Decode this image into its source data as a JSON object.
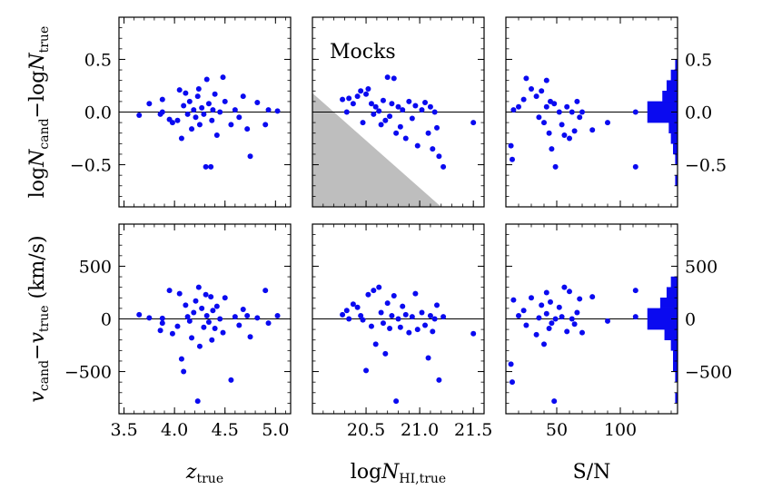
{
  "chart_data": {
    "type": "scatter",
    "title": "",
    "annotation": "Mocks",
    "point_color": "#0a0af0",
    "shade_color": "#bebebe",
    "rows": [
      {
        "key": "dlogN",
        "ylabel": "logN_cand − logN_true",
        "ylabel_parts": {
          "a": "log",
          "b": "N",
          "c": "cand",
          "d": "−log",
          "e": "N",
          "f": "true"
        },
        "ylim": [
          -0.9,
          0.9
        ],
        "ticks": [
          -0.5,
          0.0,
          0.5
        ],
        "tick_labels": [
          "−0.5",
          "0.0",
          "0.5"
        ],
        "zero_line": 0.0
      },
      {
        "key": "dv",
        "ylabel": "v_cand − v_true (km/s)",
        "ylabel_parts": {
          "a": "v",
          "b": "cand",
          "c": "−",
          "d": "v",
          "e": "true",
          "f": " (km/s)"
        },
        "ylim": [
          -900,
          900
        ],
        "ticks": [
          -500,
          0,
          500
        ],
        "tick_labels": [
          "−500",
          "0",
          "500"
        ],
        "zero_line": 0
      }
    ],
    "columns": [
      {
        "key": "z",
        "xlabel": "z_true",
        "xlabel_parts": {
          "main": "z",
          "sub": "true"
        },
        "xlim": [
          3.45,
          5.15
        ],
        "ticks": [
          3.5,
          4.0,
          4.5,
          5.0
        ],
        "tick_labels": [
          "3.5",
          "4.0",
          "4.5",
          "5.0"
        ],
        "points": [
          {
            "x": 3.65,
            "dlogN": -0.03,
            "dv": 40
          },
          {
            "x": 3.75,
            "dlogN": 0.08,
            "dv": 10
          },
          {
            "x": 3.86,
            "dlogN": -0.02,
            "dv": -110
          },
          {
            "x": 3.88,
            "dlogN": 0.12,
            "dv": -40
          },
          {
            "x": 3.88,
            "dlogN": 0.0,
            "dv": 5
          },
          {
            "x": 3.95,
            "dlogN": -0.07,
            "dv": 270
          },
          {
            "x": 3.98,
            "dlogN": -0.1,
            "dv": -140
          },
          {
            "x": 4.03,
            "dlogN": -0.08,
            "dv": -70
          },
          {
            "x": 4.05,
            "dlogN": 0.21,
            "dv": 240
          },
          {
            "x": 4.07,
            "dlogN": -0.25,
            "dv": -380
          },
          {
            "x": 4.09,
            "dlogN": 0.06,
            "dv": -500
          },
          {
            "x": 4.11,
            "dlogN": 0.18,
            "dv": 130
          },
          {
            "x": 4.13,
            "dlogN": -0.02,
            "dv": 20
          },
          {
            "x": 4.15,
            "dlogN": 0.1,
            "dv": -20
          },
          {
            "x": 4.17,
            "dlogN": -0.16,
            "dv": -180
          },
          {
            "x": 4.19,
            "dlogN": 0.02,
            "dv": 60
          },
          {
            "x": 4.21,
            "dlogN": -0.05,
            "dv": 170
          },
          {
            "x": 4.23,
            "dlogN": 0.15,
            "dv": -780
          },
          {
            "x": 4.24,
            "dlogN": 0.22,
            "dv": 300
          },
          {
            "x": 4.25,
            "dlogN": -0.12,
            "dv": -260
          },
          {
            "x": 4.27,
            "dlogN": 0.04,
            "dv": 100
          },
          {
            "x": 4.29,
            "dlogN": -0.02,
            "dv": -80
          },
          {
            "x": 4.31,
            "dlogN": -0.52,
            "dv": 230
          },
          {
            "x": 4.32,
            "dlogN": 0.31,
            "dv": 30
          },
          {
            "x": 4.34,
            "dlogN": 0.08,
            "dv": -30
          },
          {
            "x": 4.36,
            "dlogN": -0.52,
            "dv": 210
          },
          {
            "x": 4.37,
            "dlogN": -0.08,
            "dv": -200
          },
          {
            "x": 4.38,
            "dlogN": 0.02,
            "dv": 80
          },
          {
            "x": 4.4,
            "dlogN": 0.17,
            "dv": -90
          },
          {
            "x": 4.42,
            "dlogN": -0.22,
            "dv": 120
          },
          {
            "x": 4.45,
            "dlogN": 0.0,
            "dv": 0
          },
          {
            "x": 4.48,
            "dlogN": 0.33,
            "dv": -130
          },
          {
            "x": 4.5,
            "dlogN": 0.1,
            "dv": 200
          },
          {
            "x": 4.56,
            "dlogN": -0.12,
            "dv": -580
          },
          {
            "x": 4.6,
            "dlogN": 0.02,
            "dv": 20
          },
          {
            "x": 4.64,
            "dlogN": -0.05,
            "dv": -60
          },
          {
            "x": 4.68,
            "dlogN": 0.15,
            "dv": 90
          },
          {
            "x": 4.72,
            "dlogN": -0.16,
            "dv": 30
          },
          {
            "x": 4.75,
            "dlogN": -0.42,
            "dv": -170
          },
          {
            "x": 4.82,
            "dlogN": 0.09,
            "dv": 10
          },
          {
            "x": 4.9,
            "dlogN": -0.12,
            "dv": 270
          },
          {
            "x": 4.93,
            "dlogN": 0.02,
            "dv": -40
          },
          {
            "x": 5.02,
            "dlogN": 0.01,
            "dv": 30
          }
        ]
      },
      {
        "key": "logNHI",
        "xlabel": "logN_HI,true",
        "xlabel_parts": {
          "pre": "log",
          "main": "N",
          "sub": "HI,true"
        },
        "xlim": [
          20.0,
          21.6
        ],
        "ticks": [
          20.5,
          21.0,
          21.5
        ],
        "tick_labels": [
          "20.5",
          "21.0",
          "21.5"
        ],
        "shade_polygon": [
          [
            20.0,
            0.18
          ],
          [
            21.2,
            -0.9
          ],
          [
            20.0,
            -0.9
          ]
        ],
        "points": [
          {
            "x": 20.28,
            "dlogN": 0.12,
            "dv": 40
          },
          {
            "x": 20.32,
            "dlogN": 0.0,
            "dv": 80
          },
          {
            "x": 20.34,
            "dlogN": 0.13,
            "dv": 0
          },
          {
            "x": 20.38,
            "dlogN": 0.08,
            "dv": 140
          },
          {
            "x": 20.42,
            "dlogN": 0.15,
            "dv": 110
          },
          {
            "x": 20.45,
            "dlogN": 0.2,
            "dv": 30
          },
          {
            "x": 20.47,
            "dlogN": -0.1,
            "dv": -10
          },
          {
            "x": 20.5,
            "dlogN": 0.17,
            "dv": -490
          },
          {
            "x": 20.52,
            "dlogN": 0.22,
            "dv": 230
          },
          {
            "x": 20.55,
            "dlogN": 0.08,
            "dv": -70
          },
          {
            "x": 20.57,
            "dlogN": -0.02,
            "dv": 270
          },
          {
            "x": 20.59,
            "dlogN": 0.05,
            "dv": -240
          },
          {
            "x": 20.62,
            "dlogN": 0.01,
            "dv": 300
          },
          {
            "x": 20.64,
            "dlogN": -0.12,
            "dv": 60
          },
          {
            "x": 20.66,
            "dlogN": 0.11,
            "dv": -40
          },
          {
            "x": 20.68,
            "dlogN": -0.08,
            "dv": -330
          },
          {
            "x": 20.7,
            "dlogN": 0.33,
            "dv": 150
          },
          {
            "x": 20.72,
            "dlogN": -0.04,
            "dv": -90
          },
          {
            "x": 20.74,
            "dlogN": 0.08,
            "dv": 30
          },
          {
            "x": 20.76,
            "dlogN": 0.32,
            "dv": 220
          },
          {
            "x": 20.78,
            "dlogN": -0.2,
            "dv": -780
          },
          {
            "x": 20.8,
            "dlogN": 0.05,
            "dv": 0
          },
          {
            "x": 20.82,
            "dlogN": -0.14,
            "dv": -80
          },
          {
            "x": 20.84,
            "dlogN": 0.02,
            "dv": 120
          },
          {
            "x": 20.87,
            "dlogN": -0.25,
            "dv": 40
          },
          {
            "x": 20.9,
            "dlogN": 0.1,
            "dv": -130
          },
          {
            "x": 20.93,
            "dlogN": -0.06,
            "dv": 20
          },
          {
            "x": 20.96,
            "dlogN": 0.06,
            "dv": 240
          },
          {
            "x": 20.98,
            "dlogN": -0.32,
            "dv": -100
          },
          {
            "x": 21.02,
            "dlogN": 0.02,
            "dv": 60
          },
          {
            "x": 21.05,
            "dlogN": 0.09,
            "dv": -60
          },
          {
            "x": 21.08,
            "dlogN": -0.2,
            "dv": -370
          },
          {
            "x": 21.1,
            "dlogN": 0.05,
            "dv": 30
          },
          {
            "x": 21.12,
            "dlogN": -0.35,
            "dv": -120
          },
          {
            "x": 21.14,
            "dlogN": 0.0,
            "dv": 0
          },
          {
            "x": 21.16,
            "dlogN": -0.15,
            "dv": 130
          },
          {
            "x": 21.18,
            "dlogN": -0.42,
            "dv": -580
          },
          {
            "x": 21.22,
            "dlogN": -0.52,
            "dv": 20
          },
          {
            "x": 21.5,
            "dlogN": -0.1,
            "dv": -140
          }
        ]
      },
      {
        "key": "SN",
        "xlabel": "S/N",
        "xlim": [
          10,
          145
        ],
        "ticks": [
          50,
          100
        ],
        "tick_labels": [
          "50",
          "100"
        ],
        "points": [
          {
            "x": 14,
            "dlogN": -0.32,
            "dv": -430
          },
          {
            "x": 15,
            "dlogN": -0.45,
            "dv": -600
          },
          {
            "x": 16,
            "dlogN": 0.02,
            "dv": 180
          },
          {
            "x": 20,
            "dlogN": 0.05,
            "dv": 30
          },
          {
            "x": 24,
            "dlogN": 0.12,
            "dv": 80
          },
          {
            "x": 26,
            "dlogN": 0.32,
            "dv": -60
          },
          {
            "x": 30,
            "dlogN": 0.22,
            "dv": 200
          },
          {
            "x": 34,
            "dlogN": 0.15,
            "dv": -150
          },
          {
            "x": 36,
            "dlogN": -0.05,
            "dv": 10
          },
          {
            "x": 38,
            "dlogN": 0.2,
            "dv": 130
          },
          {
            "x": 40,
            "dlogN": -0.1,
            "dv": -240
          },
          {
            "x": 42,
            "dlogN": 0.3,
            "dv": 50
          },
          {
            "x": 42,
            "dlogN": 0.05,
            "dv": 250
          },
          {
            "x": 44,
            "dlogN": -0.2,
            "dv": -90
          },
          {
            "x": 45,
            "dlogN": 0.1,
            "dv": 160
          },
          {
            "x": 46,
            "dlogN": -0.35,
            "dv": -40
          },
          {
            "x": 48,
            "dlogN": 0.08,
            "dv": -780
          },
          {
            "x": 49,
            "dlogN": -0.52,
            "dv": 0
          },
          {
            "x": 52,
            "dlogN": 0.0,
            "dv": 110
          },
          {
            "x": 54,
            "dlogN": -0.12,
            "dv": 20
          },
          {
            "x": 56,
            "dlogN": -0.22,
            "dv": 300
          },
          {
            "x": 58,
            "dlogN": 0.05,
            "dv": -120
          },
          {
            "x": 60,
            "dlogN": -0.25,
            "dv": 260
          },
          {
            "x": 62,
            "dlogN": 0.0,
            "dv": 0
          },
          {
            "x": 64,
            "dlogN": -0.18,
            "dv": -50
          },
          {
            "x": 66,
            "dlogN": 0.1,
            "dv": 60
          },
          {
            "x": 68,
            "dlogN": -0.05,
            "dv": 190
          },
          {
            "x": 70,
            "dlogN": 0.0,
            "dv": -130
          },
          {
            "x": 78,
            "dlogN": -0.17,
            "dv": 210
          },
          {
            "x": 90,
            "dlogN": -0.1,
            "dv": -20
          },
          {
            "x": 112,
            "dlogN": 0.0,
            "dv": 270
          },
          {
            "x": 112,
            "dlogN": -0.52,
            "dv": 20
          }
        ],
        "histograms": {
          "dlogN": {
            "bins": [
              -0.8,
              -0.7,
              -0.6,
              -0.5,
              -0.4,
              -0.3,
              -0.2,
              -0.1,
              0.0,
              0.1,
              0.2,
              0.3,
              0.4,
              0.5
            ],
            "counts": [
              0,
              1,
              0,
              1,
              2,
              3,
              4,
              14,
              14,
              7,
              5,
              3,
              1
            ]
          },
          "dv": {
            "bins": [
              -800,
              -700,
              -600,
              -500,
              -400,
              -300,
              -200,
              -100,
              0,
              100,
              200,
              300,
              400
            ],
            "counts": [
              1,
              0,
              1,
              2,
              2,
              3,
              6,
              14,
              14,
              8,
              5,
              3
            ]
          }
        }
      }
    ]
  }
}
